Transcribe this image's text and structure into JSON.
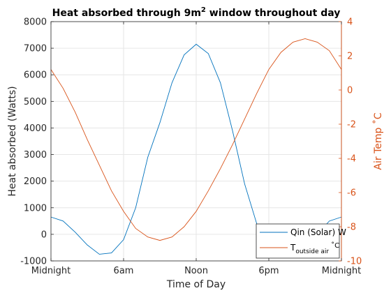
{
  "chart_data": {
    "type": "line",
    "title_main": "Heat absorbed through 9m",
    "title_sup": "2",
    "title_rest": " window throughout day",
    "xlabel": "Time of Day",
    "ylabel_left": "Heat absorbed (Watts)",
    "ylabel_right": "Air Temp ",
    "ylabel_right_unit": "˚C",
    "xlim": [
      0,
      24
    ],
    "ylim_left": [
      -1000,
      8000
    ],
    "ylim_right": [
      -10,
      4
    ],
    "x_ticks": [
      0,
      6,
      12,
      18,
      24
    ],
    "x_tick_labels": [
      "Midnight",
      "6am",
      "Noon",
      "6pm",
      "Midnight"
    ],
    "y_left_ticks": [
      -1000,
      0,
      1000,
      2000,
      3000,
      4000,
      5000,
      6000,
      7000,
      8000
    ],
    "y_left_tick_labels": [
      "-1000",
      "0",
      "1000",
      "2000",
      "3000",
      "4000",
      "5000",
      "6000",
      "7000",
      "8000"
    ],
    "y_right_ticks": [
      -10,
      -8,
      -6,
      -4,
      -2,
      0,
      2,
      4
    ],
    "y_right_tick_labels": [
      "-10",
      "-8",
      "-6",
      "-4",
      "-2",
      "0",
      "2",
      "4"
    ],
    "grid": true,
    "legend_position": "bottom-right",
    "colors": {
      "solar": "#0072BD",
      "temp": "#D95319",
      "right_axis": "#D95319",
      "grid": "#e6e6e6",
      "axis": "#262626"
    },
    "series": [
      {
        "name": "Qin (Solar) W",
        "axis": "left",
        "x": [
          0,
          1,
          2,
          3,
          4,
          5,
          6,
          7,
          8,
          9,
          10,
          11,
          12,
          13,
          14,
          15,
          16,
          17,
          18,
          19,
          20,
          21,
          22,
          23,
          24
        ],
        "y": [
          650,
          500,
          80,
          -400,
          -750,
          -700,
          -200,
          1000,
          2900,
          4200,
          5700,
          6750,
          7150,
          6800,
          5700,
          3900,
          1900,
          400,
          -550,
          -850,
          -750,
          -500,
          0,
          500,
          650
        ]
      },
      {
        "name_main": "T",
        "name_sub": "outside air",
        "name_unit": "˚C",
        "axis": "right",
        "x": [
          0,
          1,
          2,
          3,
          4,
          5,
          6,
          7,
          8,
          9,
          10,
          11,
          12,
          13,
          14,
          15,
          16,
          17,
          18,
          19,
          20,
          21,
          22,
          23,
          24
        ],
        "y": [
          1.2,
          0.1,
          -1.3,
          -2.9,
          -4.4,
          -5.9,
          -7.1,
          -8.1,
          -8.6,
          -8.8,
          -8.6,
          -8.0,
          -7.1,
          -5.9,
          -4.6,
          -3.2,
          -1.7,
          -0.2,
          1.2,
          2.2,
          2.8,
          3.0,
          2.8,
          2.3,
          1.2
        ]
      }
    ]
  }
}
